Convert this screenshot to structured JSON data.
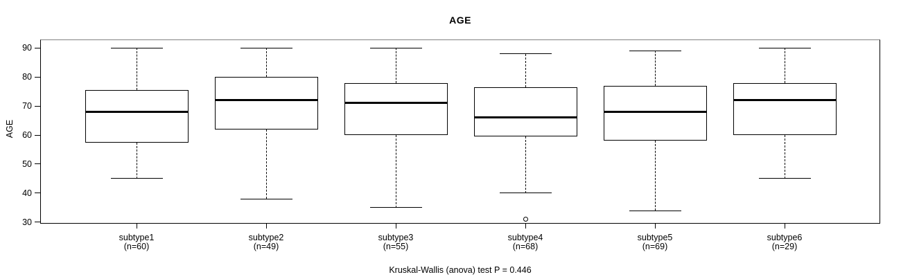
{
  "chart_data": {
    "type": "boxplot",
    "title": "AGE",
    "ylabel": "AGE",
    "xlabel": "",
    "footer": "Kruskal-Wallis (anova) test P = 0.446",
    "ylim": [
      29.5,
      92.9
    ],
    "yticks": [
      30,
      40,
      50,
      60,
      70,
      80,
      90
    ],
    "grid": false,
    "legend": "none",
    "groups": [
      {
        "label": "subtype1",
        "n_label": "(n=60)",
        "n": 60,
        "whisker_low": 45,
        "q1": 57.5,
        "median": 68,
        "q3": 75.5,
        "whisker_high": 90,
        "outliers": []
      },
      {
        "label": "subtype2",
        "n_label": "(n=49)",
        "n": 49,
        "whisker_low": 38,
        "q1": 62,
        "median": 72,
        "q3": 80,
        "whisker_high": 90,
        "outliers": []
      },
      {
        "label": "subtype3",
        "n_label": "(n=55)",
        "n": 55,
        "whisker_low": 35,
        "q1": 60,
        "median": 71,
        "q3": 78,
        "whisker_high": 90,
        "outliers": []
      },
      {
        "label": "subtype4",
        "n_label": "(n=68)",
        "n": 68,
        "whisker_low": 40,
        "q1": 59.5,
        "median": 66,
        "q3": 76.5,
        "whisker_high": 88,
        "outliers": [
          31
        ]
      },
      {
        "label": "subtype5",
        "n_label": "(n=69)",
        "n": 69,
        "whisker_low": 34,
        "q1": 58,
        "median": 68,
        "q3": 77,
        "whisker_high": 89,
        "outliers": []
      },
      {
        "label": "subtype6",
        "n_label": "(n=29)",
        "n": 29,
        "whisker_low": 45,
        "q1": 60,
        "median": 72,
        "q3": 78,
        "whisker_high": 90,
        "outliers": []
      }
    ]
  }
}
